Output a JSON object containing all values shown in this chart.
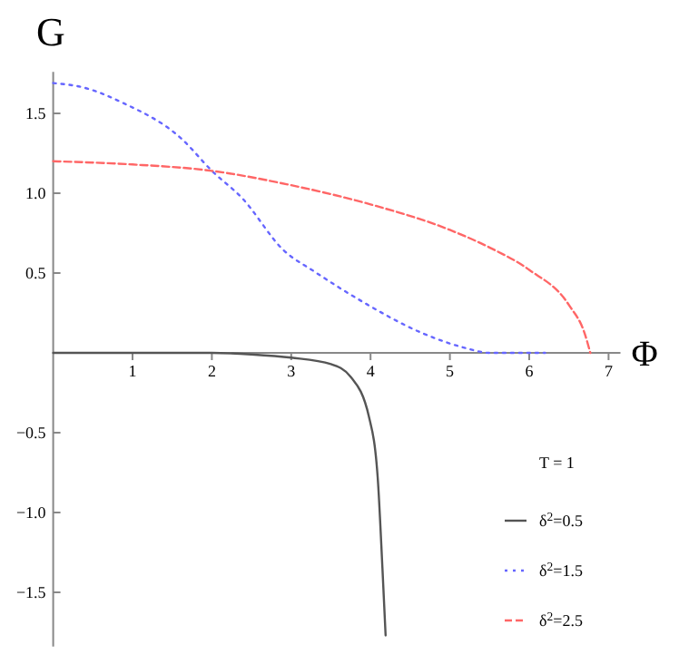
{
  "chart_data": {
    "type": "line",
    "xlabel": "Φ",
    "ylabel": "G",
    "legend_title": "T = 1",
    "legend": "bottom right",
    "grid": false,
    "xlim": [
      0,
      7.15
    ],
    "ylim": [
      -1.84,
      1.76
    ],
    "xticks": [
      1,
      2,
      3,
      4,
      5,
      6,
      7
    ],
    "yticks": [
      {
        "value": -1.5,
        "label": "−1.5"
      },
      {
        "value": -1,
        "label": "−1.0"
      },
      {
        "value": -0.5,
        "label": "−0.5"
      },
      {
        "value": 0.5,
        "label": "0.5"
      },
      {
        "value": 1,
        "label": "1.0"
      },
      {
        "value": 1.5,
        "label": "1.5"
      }
    ],
    "series": [
      {
        "name": "δ$^{2}$=0.5",
        "color": "#555555",
        "line_style": "solid",
        "x": [
          0,
          1,
          2,
          2.5,
          3,
          3.5,
          3.75,
          3.98,
          4.09,
          4.15,
          4.19
        ],
        "values": [
          0,
          0,
          0,
          -0.01,
          -0.03,
          -0.07,
          -0.15,
          -0.4,
          -0.78,
          -1.35,
          -1.77
        ]
      },
      {
        "name": "δ$^{2}$=1.5",
        "color": "#6666ff",
        "line_style": "dotted",
        "x": [
          0,
          0.4,
          0.86,
          1.62,
          2,
          2.38,
          2.91,
          3.29,
          3.9,
          4.67,
          5.2,
          5.5,
          6.2
        ],
        "values": [
          1.69,
          1.66,
          1.57,
          1.34,
          1.14,
          0.97,
          0.64,
          0.51,
          0.32,
          0.12,
          0.03,
          0,
          0
        ]
      },
      {
        "name": "δ$^{2}$=2.5",
        "color": "#ff6666",
        "line_style": "dashed",
        "x": [
          0,
          1,
          2,
          3,
          4,
          5,
          5.5,
          6,
          6.5,
          6.7,
          6.77
        ],
        "values": [
          1.2,
          1.18,
          1.14,
          1.05,
          0.93,
          0.77,
          0.66,
          0.52,
          0.3,
          0.12,
          0
        ]
      }
    ]
  }
}
